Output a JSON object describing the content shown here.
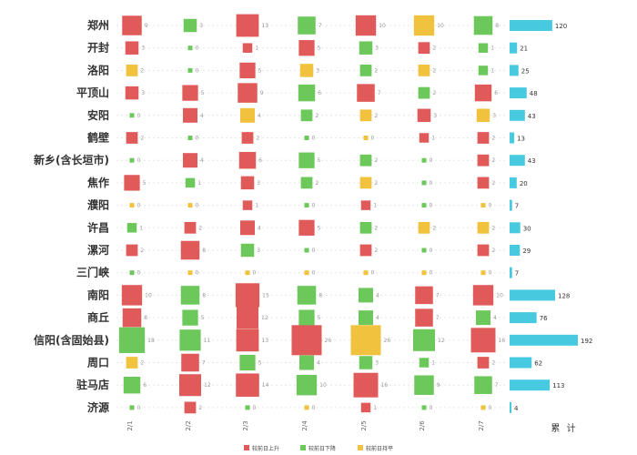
{
  "chart_data": {
    "type": "table",
    "title": "",
    "x_label_total": "累  计",
    "dates": [
      "2/1",
      "2/2",
      "2/3",
      "2/4",
      "2/5",
      "2/6",
      "2/7"
    ],
    "legend": [
      {
        "label": "较前日上升",
        "color": "#e05a5a"
      },
      {
        "label": "较前日下降",
        "color": "#6cc85a"
      },
      {
        "label": "较前日持平",
        "color": "#f0c23e"
      }
    ],
    "colors": {
      "up": "#e05a5a",
      "down": "#6cc85a",
      "flat": "#f0c23e",
      "total": "#47c9e0"
    },
    "rows": [
      {
        "city": "郑州",
        "values": [
          9,
          3,
          13,
          7,
          10,
          10,
          8
        ],
        "trend": [
          "up",
          "down",
          "up",
          "down",
          "up",
          "flat",
          "down"
        ],
        "total": 120
      },
      {
        "city": "开封",
        "values": [
          3,
          0,
          1,
          5,
          3,
          2,
          1
        ],
        "trend": [
          "up",
          "down",
          "up",
          "up",
          "down",
          "up",
          "down"
        ],
        "total": 21
      },
      {
        "city": "洛阳",
        "values": [
          2,
          0,
          5,
          3,
          2,
          2,
          1
        ],
        "trend": [
          "flat",
          "down",
          "up",
          "flat",
          "down",
          "flat",
          "down"
        ],
        "total": 25
      },
      {
        "city": "平顶山",
        "values": [
          3,
          5,
          9,
          6,
          7,
          2,
          6
        ],
        "trend": [
          "up",
          "up",
          "up",
          "down",
          "up",
          "down",
          "up"
        ],
        "total": 48
      },
      {
        "city": "安阳",
        "values": [
          0,
          4,
          4,
          2,
          2,
          3,
          3
        ],
        "trend": [
          "down",
          "up",
          "flat",
          "down",
          "flat",
          "up",
          "flat"
        ],
        "total": 43
      },
      {
        "city": "鹤壁",
        "values": [
          2,
          0,
          2,
          0,
          0,
          1,
          2
        ],
        "trend": [
          "up",
          "down",
          "up",
          "down",
          "flat",
          "up",
          "up"
        ],
        "total": 13
      },
      {
        "city": "新乡(含长垣市)",
        "values": [
          0,
          4,
          6,
          5,
          2,
          0,
          2
        ],
        "trend": [
          "down",
          "up",
          "up",
          "down",
          "down",
          "down",
          "up"
        ],
        "total": 43
      },
      {
        "city": "焦作",
        "values": [
          5,
          1,
          3,
          2,
          2,
          0,
          2
        ],
        "trend": [
          "up",
          "down",
          "up",
          "down",
          "flat",
          "down",
          "up"
        ],
        "total": 20
      },
      {
        "city": "濮阳",
        "values": [
          0,
          0,
          1,
          0,
          1,
          0,
          0
        ],
        "trend": [
          "flat",
          "flat",
          "up",
          "down",
          "up",
          "down",
          "flat"
        ],
        "total": 7
      },
      {
        "city": "许昌",
        "values": [
          1,
          2,
          4,
          5,
          2,
          2,
          2
        ],
        "trend": [
          "down",
          "up",
          "up",
          "up",
          "down",
          "flat",
          "flat"
        ],
        "total": 30
      },
      {
        "city": "漯河",
        "values": [
          2,
          8,
          3,
          0,
          2,
          0,
          2
        ],
        "trend": [
          "up",
          "up",
          "down",
          "down",
          "up",
          "down",
          "up"
        ],
        "total": 29
      },
      {
        "city": "三门峡",
        "values": [
          0,
          0,
          0,
          0,
          0,
          0,
          0
        ],
        "trend": [
          "down",
          "flat",
          "flat",
          "flat",
          "flat",
          "flat",
          "flat"
        ],
        "total": 7
      },
      {
        "city": "南阳",
        "values": [
          10,
          8,
          15,
          8,
          4,
          7,
          10
        ],
        "trend": [
          "up",
          "down",
          "up",
          "down",
          "down",
          "up",
          "up"
        ],
        "total": 128
      },
      {
        "city": "商丘",
        "values": [
          8,
          5,
          12,
          5,
          4,
          7,
          4
        ],
        "trend": [
          "up",
          "down",
          "up",
          "down",
          "down",
          "up",
          "down"
        ],
        "total": 76
      },
      {
        "city": "信阳(含固始县)",
        "values": [
          18,
          11,
          13,
          26,
          26,
          12,
          16
        ],
        "trend": [
          "down",
          "down",
          "up",
          "up",
          "flat",
          "down",
          "up"
        ],
        "total": 192
      },
      {
        "city": "周口",
        "values": [
          2,
          7,
          5,
          4,
          3,
          1,
          2
        ],
        "trend": [
          "flat",
          "up",
          "down",
          "down",
          "down",
          "down",
          "up"
        ],
        "total": 62
      },
      {
        "city": "驻马店",
        "values": [
          6,
          12,
          14,
          10,
          16,
          9,
          7
        ],
        "trend": [
          "down",
          "up",
          "up",
          "down",
          "up",
          "down",
          "down"
        ],
        "total": 113
      },
      {
        "city": "济源",
        "values": [
          0,
          2,
          0,
          0,
          1,
          0,
          0
        ],
        "trend": [
          "down",
          "up",
          "down",
          "flat",
          "up",
          "down",
          "flat"
        ],
        "total": 4
      }
    ]
  }
}
